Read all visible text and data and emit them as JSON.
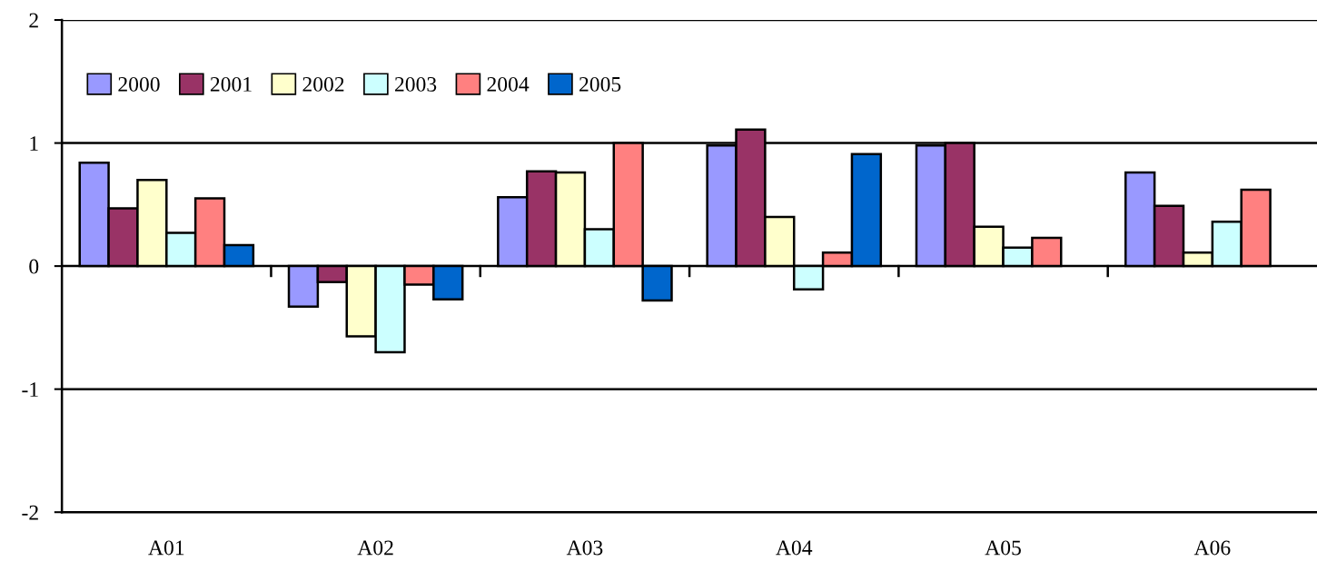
{
  "chart_data": {
    "type": "bar",
    "categories": [
      "A01",
      "A02",
      "A03",
      "A04",
      "A05",
      "A06"
    ],
    "series": [
      {
        "name": "2000",
        "color": "#9999ff",
        "values": [
          0.84,
          -0.33,
          0.56,
          0.98,
          0.98,
          0.76
        ]
      },
      {
        "name": "2001",
        "color": "#993366",
        "values": [
          0.47,
          -0.13,
          0.77,
          1.11,
          1.0,
          0.49
        ]
      },
      {
        "name": "2002",
        "color": "#ffffcc",
        "values": [
          0.7,
          -0.57,
          0.76,
          0.4,
          0.32,
          0.11
        ]
      },
      {
        "name": "2003",
        "color": "#ccffff",
        "values": [
          0.27,
          -0.7,
          0.3,
          -0.19,
          0.15,
          0.36
        ]
      },
      {
        "name": "2004",
        "color": "#ff8080",
        "values": [
          0.55,
          -0.15,
          1.0,
          0.11,
          0.23,
          0.62
        ]
      },
      {
        "name": "2005",
        "color": "#0066cc",
        "values": [
          0.17,
          -0.27,
          -0.28,
          0.91,
          null,
          null
        ]
      }
    ],
    "ylim": [
      -2,
      2
    ],
    "yticks": [
      -2,
      -1,
      0,
      1,
      2
    ],
    "grid": "y",
    "legend": "top left"
  }
}
